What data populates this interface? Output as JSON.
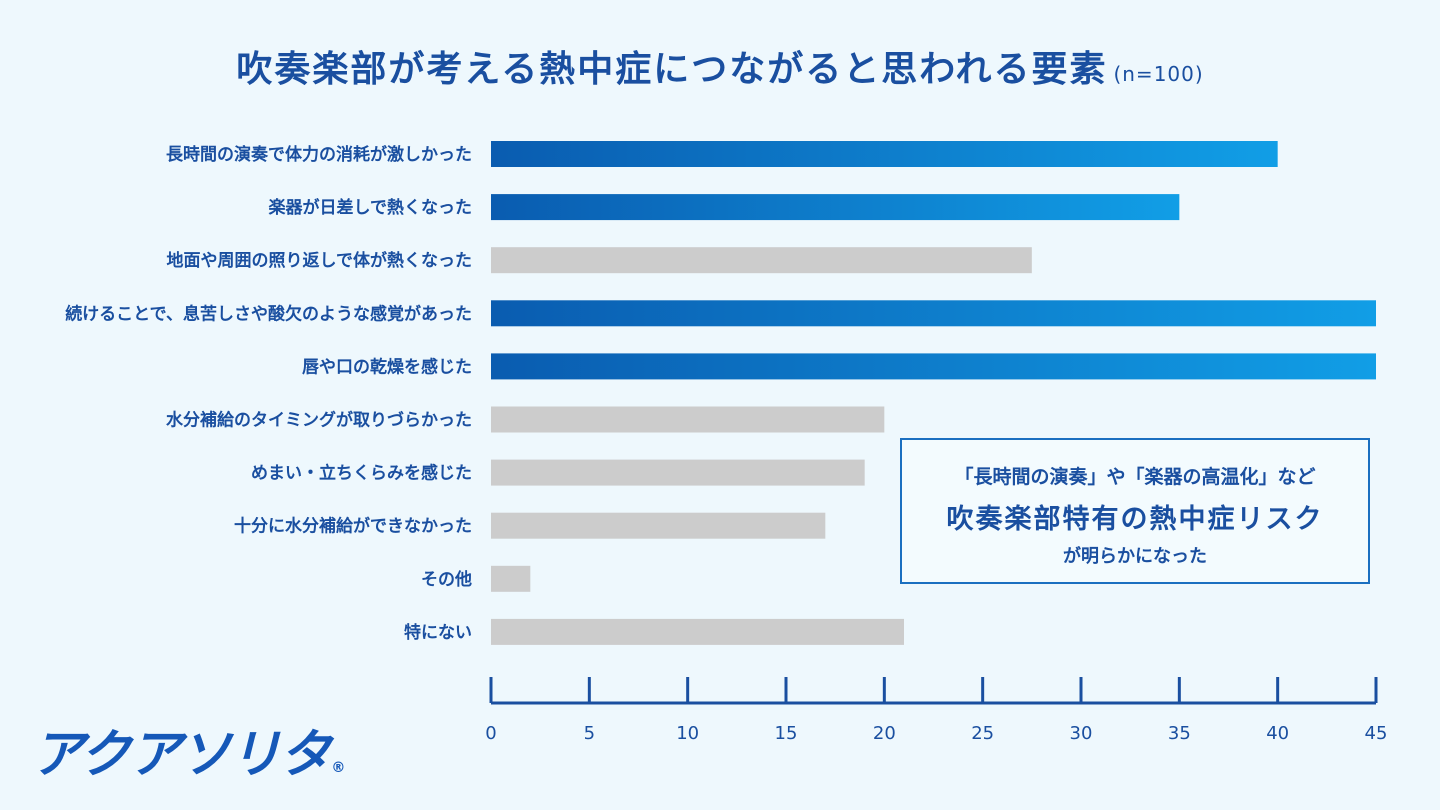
{
  "title": "吹奏楽部が考える熱中症につながると思われる要素",
  "sample_note": "(n=100)",
  "callout": {
    "line1": "「長時間の演奏」や「楽器の高温化」など",
    "line2": "吹奏楽部特有の熱中症リスク",
    "line3": "が明らかになった"
  },
  "logo": {
    "text": "アクアソリタ",
    "mark": "®"
  },
  "colors": {
    "highlight_start": "#0a5cb0",
    "highlight_end": "#119ee6",
    "other": "#cccccc",
    "text": "#1a4fa0"
  },
  "chart_data": {
    "type": "bar",
    "orientation": "horizontal",
    "categories": [
      "長時間の演奏で体力の消耗が激しかった",
      "楽器が日差しで熱くなった",
      "地面や周囲の照り返しで体が熱くなった",
      "続けることで、息苦しさや酸欠のような感覚があった",
      "唇や口の乾燥を感じた",
      "水分補給のタイミングが取りづらかった",
      "めまい・立ちくらみを感じた",
      "十分に水分補給ができなかった",
      "その他",
      "特にない"
    ],
    "values": [
      40,
      35,
      27.5,
      45,
      45,
      20,
      19,
      17,
      2,
      21
    ],
    "highlighted": [
      true,
      true,
      false,
      true,
      true,
      false,
      false,
      false,
      false,
      false
    ],
    "xlim": [
      0,
      45
    ],
    "xticks": [
      0,
      5,
      10,
      15,
      20,
      25,
      30,
      35,
      40,
      45
    ],
    "grid": false
  }
}
